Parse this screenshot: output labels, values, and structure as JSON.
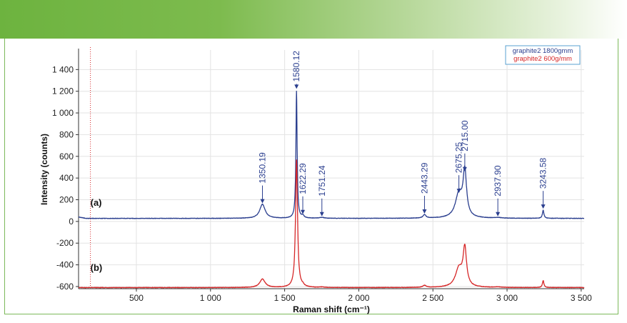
{
  "chart_data": {
    "type": "line",
    "xlabel": "Raman shift (cm⁻¹)",
    "ylabel": "Intensity (counts)",
    "xlim": [
      110,
      3520
    ],
    "ylim": [
      -620,
      1580
    ],
    "xticks": [
      {
        "value": 500,
        "label": "500"
      },
      {
        "value": 1000,
        "label": "1 000"
      },
      {
        "value": 1500,
        "label": "1 500"
      },
      {
        "value": 2000,
        "label": "2 000"
      },
      {
        "value": 2500,
        "label": "2 500"
      },
      {
        "value": 3000,
        "label": "3 000"
      },
      {
        "value": 3500,
        "label": "3 500"
      }
    ],
    "yticks": [
      {
        "value": 1400,
        "label": "1 400"
      },
      {
        "value": 1200,
        "label": "1 200"
      },
      {
        "value": 1000,
        "label": "1 000"
      },
      {
        "value": 800,
        "label": "800"
      },
      {
        "value": 600,
        "label": "600"
      },
      {
        "value": 400,
        "label": "400"
      },
      {
        "value": 200,
        "label": "200"
      },
      {
        "value": 0,
        "label": "0"
      },
      {
        "value": -200,
        "label": "-200"
      },
      {
        "value": -400,
        "label": "-400"
      },
      {
        "value": -600,
        "label": "-600"
      }
    ],
    "grid": true,
    "legend_position": "top-right",
    "marker_line_x": 190,
    "series": [
      {
        "name": "graphite2 1800gmm",
        "label": "(a)",
        "label_x": 190,
        "label_y": 170,
        "color": "#2b3f8f",
        "baseline": 28,
        "peaks": [
          {
            "x": 1350.19,
            "height": 130,
            "width": 22
          },
          {
            "x": 1580.12,
            "height": 1170,
            "width": 5
          },
          {
            "x": 1622.29,
            "height": 22,
            "width": 10
          },
          {
            "x": 1751.24,
            "height": 8,
            "width": 20
          },
          {
            "x": 2443.29,
            "height": 32,
            "width": 12
          },
          {
            "x": 2675.25,
            "height": 220,
            "width": 28
          },
          {
            "x": 2715.0,
            "height": 410,
            "width": 14
          },
          {
            "x": 2937.9,
            "height": 6,
            "width": 25
          },
          {
            "x": 3243.58,
            "height": 75,
            "width": 6
          }
        ],
        "annotations": [
          {
            "x": 1350.19,
            "text": "1350.19",
            "tip_y": 160
          },
          {
            "x": 1580.12,
            "text": "1580.12",
            "tip_y": 1215
          },
          {
            "x": 1622.29,
            "text": "1622.29",
            "tip_y": 60
          },
          {
            "x": 1751.24,
            "text": "1751.24",
            "tip_y": 40
          },
          {
            "x": 2443.29,
            "text": "2443.29",
            "tip_y": 65
          },
          {
            "x": 2675.25,
            "text": "2675.25",
            "tip_y": 255
          },
          {
            "x": 2715.0,
            "text": "2715.00",
            "tip_y": 455
          },
          {
            "x": 2937.9,
            "text": "2937.90",
            "tip_y": 40
          },
          {
            "x": 3243.58,
            "text": "3243.58",
            "tip_y": 110
          }
        ]
      },
      {
        "name": "graphite2 600g/mm",
        "label": "(b)",
        "label_x": 190,
        "label_y": -430,
        "color": "#d62728",
        "baseline": -610,
        "peaks": [
          {
            "x": 1350.19,
            "height": 78,
            "width": 22
          },
          {
            "x": 1580.12,
            "height": 1175,
            "width": 8
          },
          {
            "x": 1622.29,
            "height": 12,
            "width": 10
          },
          {
            "x": 1751.24,
            "height": 4,
            "width": 20
          },
          {
            "x": 2443.29,
            "height": 18,
            "width": 14
          },
          {
            "x": 2675.25,
            "height": 170,
            "width": 28
          },
          {
            "x": 2715.0,
            "height": 345,
            "width": 14
          },
          {
            "x": 2937.9,
            "height": 5,
            "width": 25
          },
          {
            "x": 3243.58,
            "height": 65,
            "width": 6
          }
        ],
        "annotations": []
      }
    ]
  }
}
